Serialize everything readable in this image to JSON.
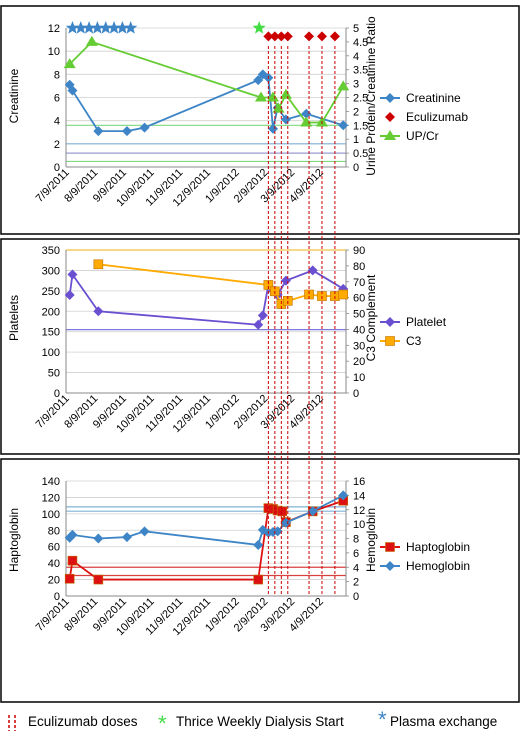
{
  "chart_data": [
    {
      "type": "line",
      "ylabel": "Creatinine",
      "y2label": "Urine Protein/Creatinine Ratio",
      "ylim": [
        0,
        12
      ],
      "y2lim": [
        0,
        5
      ],
      "yticks": [
        "0",
        "2",
        "4",
        "6",
        "8",
        "10",
        "12"
      ],
      "y2ticks": [
        "0",
        "0.5",
        "1",
        "1.5",
        "2",
        "2.5",
        "3",
        "3.5",
        "4",
        "4.5",
        "5"
      ],
      "xticks": [
        "7/9/2011",
        "8/9/2011",
        "9/9/2011",
        "10/9/2011",
        "11/9/2011",
        "12/9/2011",
        "1/9/2012",
        "2/9/2012",
        "3/9/2012",
        "4/9/2012"
      ],
      "xlim": [
        "2011-07-05",
        "2012-05-03"
      ],
      "grid": true,
      "legend_position": "right",
      "reference_lines": {
        "left_axis": [
          1.2,
          2
        ],
        "right_axis": [
          0.2,
          1.5
        ],
        "left_colors": [
          "#9b9bd6",
          "#7fb3d9"
        ],
        "right_colors": [
          "#7fd97f",
          "#7fd97f"
        ]
      },
      "series": [
        {
          "name": "Creatinine",
          "axis": "left",
          "color": "#3d85c6",
          "marker": "diamond",
          "x": [
            "2011-07-09",
            "2011-07-12",
            "2011-08-09",
            "2011-09-09",
            "2011-09-28",
            "2012-01-29",
            "2012-02-03",
            "2012-02-09",
            "2012-02-14",
            "2012-02-19",
            "2012-02-28",
            "2012-03-21",
            "2012-04-30"
          ],
          "y": [
            7.1,
            6.6,
            3.1,
            3.1,
            3.4,
            7.5,
            8.0,
            7.7,
            3.3,
            5.1,
            4.1,
            4.6,
            3.6
          ]
        },
        {
          "name": "Eculizumab",
          "axis": "right",
          "color": "#cc0000",
          "marker": "diamond",
          "linestyle": "none",
          "x": [
            "2012-02-09",
            "2012-02-16",
            "2012-02-23",
            "2012-03-01",
            "2012-03-24",
            "2012-04-07",
            "2012-04-21"
          ],
          "y": [
            4.7,
            4.7,
            4.7,
            4.7,
            4.7,
            4.7,
            4.7
          ]
        },
        {
          "name": "UP/Cr",
          "axis": "right",
          "color": "#66cc33",
          "marker": "triangle",
          "x": [
            "2011-07-09",
            "2011-08-02",
            "2012-02-01",
            "2012-02-14",
            "2012-02-20",
            "2012-02-28",
            "2012-03-21",
            "2012-04-07",
            "2012-04-30"
          ],
          "y": [
            3.7,
            4.5,
            2.5,
            2.5,
            2.1,
            2.6,
            1.6,
            1.6,
            2.9
          ]
        },
        {
          "name": "Plasma exchange",
          "axis": "left",
          "color": "#3d85c6",
          "marker": "star",
          "linestyle": "none",
          "x": [
            "2011-07-12",
            "2011-07-21",
            "2011-07-30",
            "2011-08-08",
            "2011-08-17",
            "2011-08-26",
            "2011-09-04",
            "2011-09-13"
          ],
          "y": [
            12,
            12,
            12,
            12,
            12,
            12,
            12,
            12
          ]
        },
        {
          "name": "Thrice Weekly Dialysis Start",
          "axis": "left",
          "color": "#44dd44",
          "marker": "star",
          "linestyle": "none",
          "x": [
            "2012-01-30"
          ],
          "y": [
            12
          ]
        }
      ]
    },
    {
      "type": "line",
      "ylabel": "Platelets",
      "y2label": "C3 Complement",
      "ylim": [
        0,
        350
      ],
      "y2lim": [
        0,
        90
      ],
      "yticks": [
        "0",
        "50",
        "100",
        "150",
        "200",
        "250",
        "300",
        "350"
      ],
      "y2ticks": [
        "0",
        "10",
        "20",
        "30",
        "40",
        "50",
        "60",
        "70",
        "80",
        "90"
      ],
      "xticks": [
        "7/9/2011",
        "8/9/2011",
        "9/9/2011",
        "10/9/2011",
        "11/9/2011",
        "12/9/2011",
        "1/9/2012",
        "2/9/2012",
        "3/9/2012",
        "4/9/2012"
      ],
      "xlim": [
        "2011-07-05",
        "2012-05-03"
      ],
      "grid": true,
      "legend_position": "right",
      "reference_lines": {
        "left_axis": [
          155
        ],
        "right_axis": [
          90
        ],
        "left_colors": [
          "#6a6ad8"
        ],
        "right_colors": [
          "#f0c040"
        ]
      },
      "series": [
        {
          "name": "Platelet",
          "axis": "left",
          "color": "#6a50d0",
          "marker": "diamond",
          "x": [
            "2011-07-09",
            "2011-07-12",
            "2011-08-09",
            "2012-01-29",
            "2012-02-03",
            "2012-02-09",
            "2012-02-14",
            "2012-02-19",
            "2012-02-28",
            "2012-03-28",
            "2012-04-30"
          ],
          "y": [
            240,
            290,
            200,
            167,
            190,
            265,
            250,
            240,
            275,
            300,
            255
          ]
        },
        {
          "name": "C3",
          "axis": "right",
          "color": "#ffaa00",
          "marker": "square",
          "x": [
            "2011-08-09",
            "2012-02-09",
            "2012-02-16",
            "2012-02-23",
            "2012-03-01",
            "2012-03-24",
            "2012-04-07",
            "2012-04-21",
            "2012-04-30"
          ],
          "y": [
            81,
            68,
            64,
            56,
            58,
            62,
            61,
            61,
            62
          ]
        }
      ]
    },
    {
      "type": "line",
      "ylabel": "Haptoglobin",
      "y2label": "Hemoglobin",
      "ylim": [
        0,
        140
      ],
      "y2lim": [
        0,
        16
      ],
      "yticks": [
        "0",
        "20",
        "40",
        "60",
        "80",
        "100",
        "120",
        "140"
      ],
      "y2ticks": [
        "0",
        "2",
        "4",
        "6",
        "8",
        "10",
        "12",
        "14",
        "16"
      ],
      "xticks": [
        "7/9/2011",
        "8/9/2011",
        "9/9/2011",
        "10/9/2011",
        "11/9/2011",
        "12/9/2011",
        "1/9/2012",
        "2/9/2012",
        "3/9/2012",
        "4/9/2012"
      ],
      "xlim": [
        "2011-07-05",
        "2012-05-03"
      ],
      "grid": true,
      "legend_position": "right",
      "reference_lines": {
        "left_axis": [
          25,
          35
        ],
        "right_axis": [
          11.8,
          12.4
        ],
        "left_colors": [
          "#d94040",
          "#d94040"
        ],
        "right_colors": [
          "#7fb3d9",
          "#7fb3d9"
        ]
      },
      "series": [
        {
          "name": "Haptoglobin",
          "axis": "left",
          "color": "#dd1111",
          "marker": "square",
          "x": [
            "2011-07-09",
            "2011-07-12",
            "2011-08-09",
            "2012-01-29",
            "2012-02-09",
            "2012-02-14",
            "2012-02-19",
            "2012-02-24",
            "2012-02-28",
            "2012-03-28",
            "2012-04-30"
          ],
          "y": [
            21,
            43,
            20,
            20,
            107,
            106,
            104,
            103,
            90,
            103,
            116
          ]
        },
        {
          "name": "Hemoglobin",
          "axis": "right",
          "color": "#3d85c6",
          "marker": "diamond",
          "x": [
            "2011-07-09",
            "2011-07-12",
            "2011-08-09",
            "2011-09-09",
            "2011-09-28",
            "2012-01-29",
            "2012-02-03",
            "2012-02-09",
            "2012-02-14",
            "2012-02-19",
            "2012-02-28",
            "2012-03-28",
            "2012-04-30"
          ],
          "y": [
            8.1,
            8.5,
            8.0,
            8.2,
            9.0,
            7.1,
            9.2,
            8.8,
            8.9,
            9.0,
            10.2,
            11.8,
            14.0
          ]
        }
      ]
    }
  ],
  "eculizumab_dose_dates": [
    "2012-02-09",
    "2012-02-16",
    "2012-02-23",
    "2012-03-01",
    "2012-03-24",
    "2012-04-07",
    "2012-04-21"
  ],
  "bottom_legend": {
    "eculizumab": "Eculizumab doses",
    "dialysis": "Thrice Weekly Dialysis Start",
    "plasma": "Plasma exchange"
  },
  "colors": {
    "dose_line": "#cc0000",
    "dialysis_star": "#44dd44",
    "plasma_star": "#3d85c6"
  }
}
